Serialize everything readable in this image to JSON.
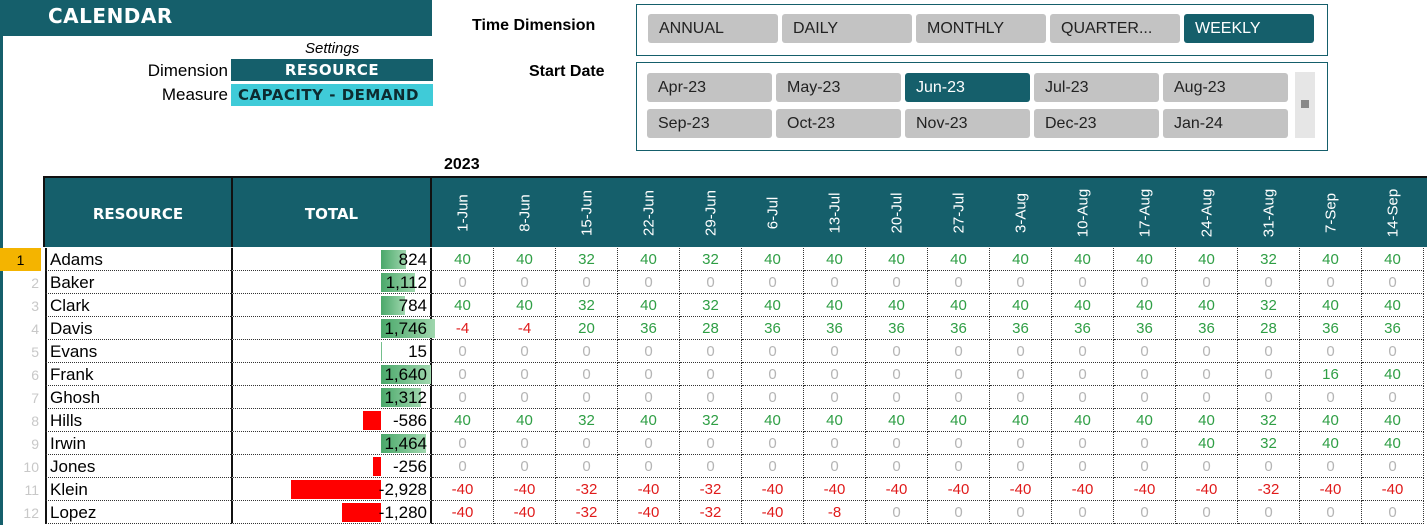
{
  "title": "CALENDAR",
  "settings": {
    "caption": "Settings",
    "dimension_label": "Dimension",
    "dimension_value": "RESOURCE",
    "measure_label": "Measure",
    "measure_value": "CAPACITY - DEMAND"
  },
  "time_dimension": {
    "title": "Time Dimension",
    "options": [
      "ANNUAL",
      "DAILY",
      "MONTHLY",
      "QUARTER...",
      "WEEKLY"
    ],
    "selected": "WEEKLY"
  },
  "start_date": {
    "title": "Start Date",
    "options": [
      "Apr-23",
      "May-23",
      "Jun-23",
      "Jul-23",
      "Aug-23",
      "Sep-23",
      "Oct-23",
      "Nov-23",
      "Dec-23",
      "Jan-24"
    ],
    "selected": "Jun-23"
  },
  "year_label": "2023",
  "table": {
    "header_resource": "RESOURCE",
    "header_total": "TOTAL",
    "dates": [
      "1-Jun",
      "8-Jun",
      "15-Jun",
      "22-Jun",
      "29-Jun",
      "6-Jul",
      "13-Jul",
      "20-Jul",
      "27-Jul",
      "3-Aug",
      "10-Aug",
      "17-Aug",
      "24-Aug",
      "31-Aug",
      "7-Sep",
      "14-Sep"
    ],
    "total_max_abs": 2928,
    "rows": [
      {
        "num": "1",
        "name": "Adams",
        "total": 824,
        "total_label": "824",
        "values": [
          40,
          40,
          32,
          40,
          32,
          40,
          40,
          40,
          40,
          40,
          40,
          40,
          40,
          32,
          40,
          40
        ]
      },
      {
        "num": "2",
        "name": "Baker",
        "total": 1112,
        "total_label": "1,112",
        "values": [
          0,
          0,
          0,
          0,
          0,
          0,
          0,
          0,
          0,
          0,
          0,
          0,
          0,
          0,
          0,
          0
        ]
      },
      {
        "num": "3",
        "name": "Clark",
        "total": 784,
        "total_label": "784",
        "values": [
          40,
          40,
          32,
          40,
          32,
          40,
          40,
          40,
          40,
          40,
          40,
          40,
          40,
          32,
          40,
          40
        ]
      },
      {
        "num": "4",
        "name": "Davis",
        "total": 1746,
        "total_label": "1,746",
        "values": [
          -4,
          -4,
          20,
          36,
          28,
          36,
          36,
          36,
          36,
          36,
          36,
          36,
          36,
          28,
          36,
          36
        ]
      },
      {
        "num": "5",
        "name": "Evans",
        "total": 15,
        "total_label": "15",
        "values": [
          0,
          0,
          0,
          0,
          0,
          0,
          0,
          0,
          0,
          0,
          0,
          0,
          0,
          0,
          0,
          0
        ]
      },
      {
        "num": "6",
        "name": "Frank",
        "total": 1640,
        "total_label": "1,640",
        "values": [
          0,
          0,
          0,
          0,
          0,
          0,
          0,
          0,
          0,
          0,
          0,
          0,
          0,
          0,
          16,
          40
        ]
      },
      {
        "num": "7",
        "name": "Ghosh",
        "total": 1312,
        "total_label": "1,312",
        "values": [
          0,
          0,
          0,
          0,
          0,
          0,
          0,
          0,
          0,
          0,
          0,
          0,
          0,
          0,
          0,
          0
        ]
      },
      {
        "num": "8",
        "name": "Hills",
        "total": -586,
        "total_label": "-586",
        "values": [
          40,
          40,
          32,
          40,
          32,
          40,
          40,
          40,
          40,
          40,
          40,
          40,
          40,
          32,
          40,
          40
        ]
      },
      {
        "num": "9",
        "name": "Irwin",
        "total": 1464,
        "total_label": "1,464",
        "values": [
          0,
          0,
          0,
          0,
          0,
          0,
          0,
          0,
          0,
          0,
          0,
          0,
          40,
          32,
          40,
          40
        ]
      },
      {
        "num": "10",
        "name": "Jones",
        "total": -256,
        "total_label": "-256",
        "values": [
          0,
          0,
          0,
          0,
          0,
          0,
          0,
          0,
          0,
          0,
          0,
          0,
          0,
          0,
          0,
          0
        ]
      },
      {
        "num": "11",
        "name": "Klein",
        "total": -2928,
        "total_label": "-2,928",
        "values": [
          -40,
          -40,
          -32,
          -40,
          -32,
          -40,
          -40,
          -40,
          -40,
          -40,
          -40,
          -40,
          -40,
          -32,
          -40,
          -40
        ]
      },
      {
        "num": "12",
        "name": "Lopez",
        "total": -1280,
        "total_label": "-1,280",
        "values": [
          -40,
          -40,
          -32,
          -40,
          -32,
          -40,
          -8,
          0,
          0,
          0,
          0,
          0,
          0,
          0,
          0,
          0
        ]
      }
    ]
  },
  "colors": {
    "header_teal": "#155f6b",
    "measure_cyan": "#3fcbd8",
    "positive": "#2e9e44",
    "negative": "#e01b1b",
    "zero": "#b5b5b5",
    "active_row": "#f4b400"
  }
}
